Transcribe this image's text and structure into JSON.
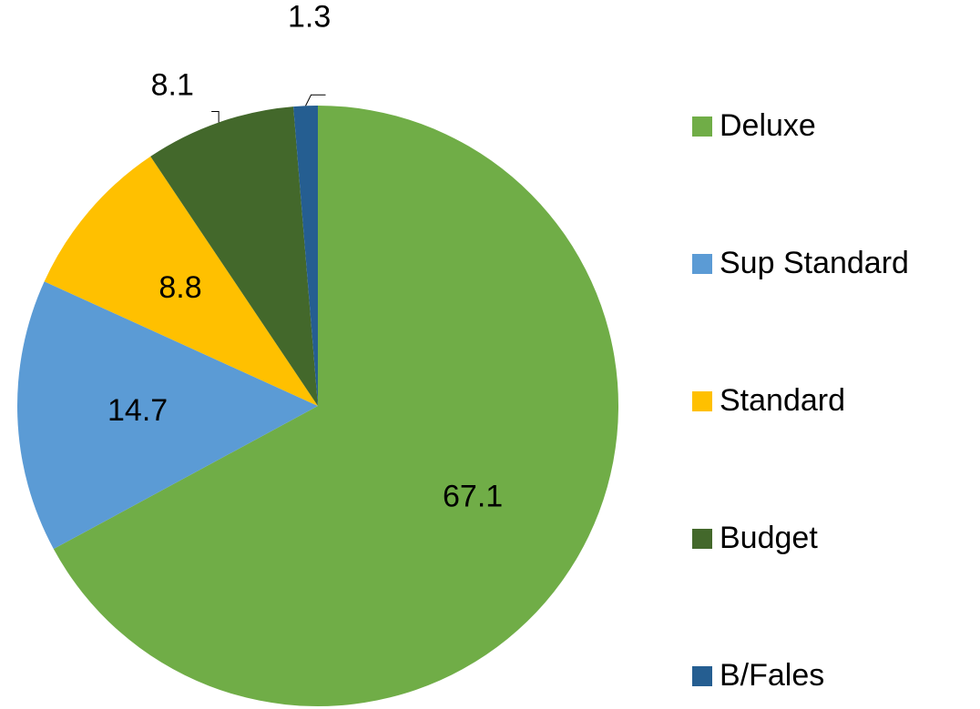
{
  "chart_data": {
    "type": "pie",
    "categories": [
      "Deluxe",
      "Sup Standard",
      "Standard",
      "Budget",
      "B/Fales"
    ],
    "values": [
      67.1,
      14.7,
      8.8,
      8.1,
      1.3
    ],
    "colors": [
      "#70ad47",
      "#5b9bd5",
      "#ffc000",
      "#43682b",
      "#255e91"
    ],
    "legend": "right"
  }
}
